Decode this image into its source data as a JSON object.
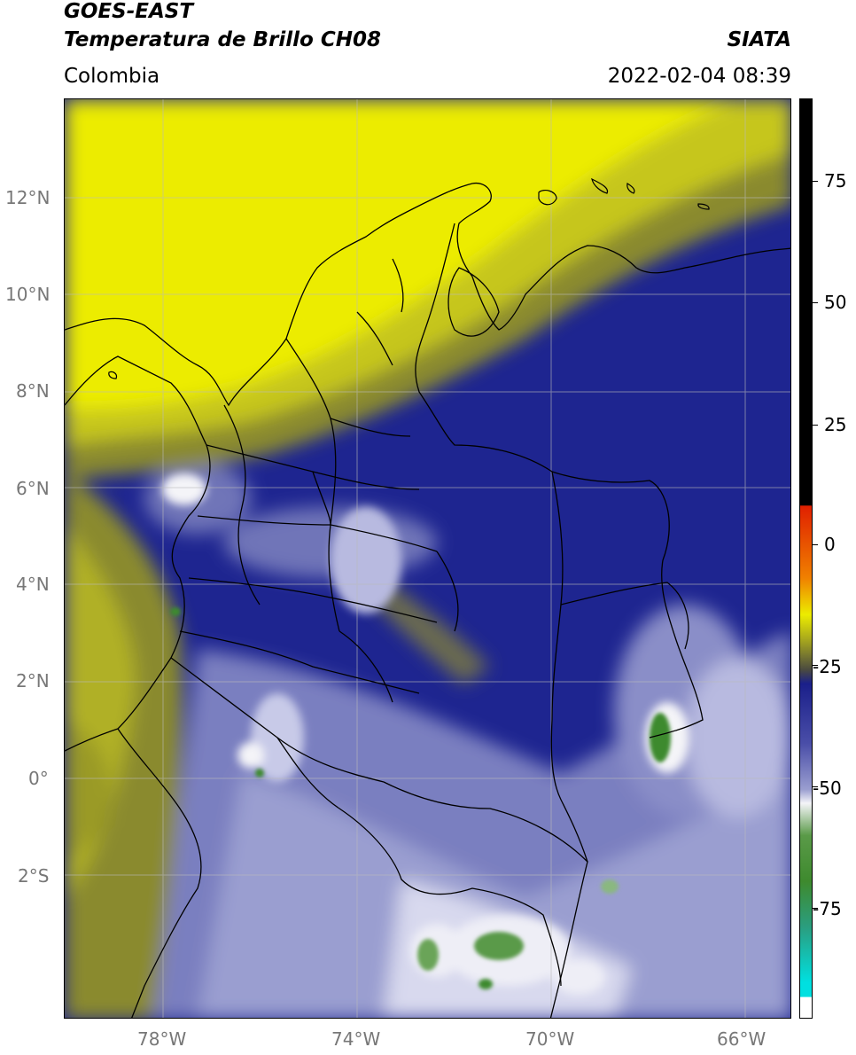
{
  "header": {
    "title_line1": "GOES-EAST",
    "title_line2": "Temperatura de Brillo CH08",
    "organization": "SIATA",
    "region": "Colombia",
    "datetime": "2022-02-04 08:39"
  },
  "map": {
    "lon_ticks": [
      "78°W",
      "74°W",
      "70°W",
      "66°W"
    ],
    "lat_ticks": [
      "12°N",
      "10°N",
      "8°N",
      "6°N",
      "4°N",
      "2°N",
      "0°",
      "2°S"
    ],
    "colors": {
      "yellow": "#ecec00",
      "olive": "#9a9a28",
      "navy": "#1a1f8a",
      "lavender": "#9a9ed0",
      "white": "#f4f4f8",
      "green": "#3e8a2e",
      "border": "#000000",
      "grid": "#bbbbbb"
    }
  },
  "colorbar": {
    "tick_labels": [
      "75",
      "50",
      "25",
      "0",
      "-25",
      "-50",
      "-75"
    ],
    "colors": [
      "#ffffff",
      "#00e0e0",
      "#2a9e80",
      "#3e8a2e",
      "#f4f4f8",
      "#9a9ed0",
      "#1a1f8a",
      "#4a4a40",
      "#a0a020",
      "#ecec00",
      "#f08000",
      "#e02000",
      "#000000"
    ]
  }
}
